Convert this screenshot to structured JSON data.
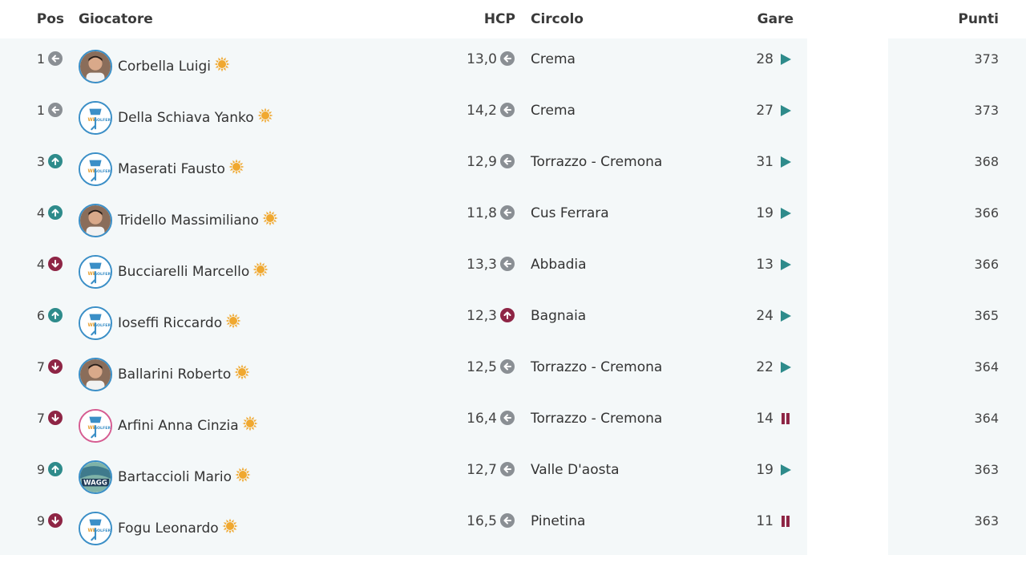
{
  "header": {
    "pos": "Pos",
    "player": "Giocatore",
    "hcp": "HCP",
    "club": "Circolo",
    "races": "Gare",
    "points": "Punti"
  },
  "colors": {
    "row_bg": "#f4f8f9",
    "gray_icon": "#8a8f94",
    "up_icon": "#2e8b8b",
    "down_icon": "#8e2545",
    "play": "#2e8b8b",
    "pause": "#8e2545",
    "sun": "#f0a830",
    "avatar_border": "#3b8fc7"
  },
  "rows": [
    {
      "pos": "1",
      "pos_trend": "left-arrow-icon",
      "avatar": "photo",
      "name": "Corbella Luigi",
      "hcp": "13,0",
      "hcp_trend": "left-arrow-icon",
      "club": "Crema",
      "races": "28",
      "race_status": "play-icon",
      "points": "373"
    },
    {
      "pos": "1",
      "pos_trend": "left-arrow-icon",
      "avatar": "logo",
      "name": "Della Schiava Yanko",
      "hcp": "14,2",
      "hcp_trend": "left-arrow-icon",
      "club": "Crema",
      "races": "27",
      "race_status": "play-icon",
      "points": "373"
    },
    {
      "pos": "3",
      "pos_trend": "up-arrow-icon",
      "avatar": "logo",
      "name": "Maserati Fausto",
      "hcp": "12,9",
      "hcp_trend": "left-arrow-icon",
      "club": "Torrazzo - Cremona",
      "races": "31",
      "race_status": "play-icon",
      "points": "368"
    },
    {
      "pos": "4",
      "pos_trend": "up-arrow-icon",
      "avatar": "photo",
      "name": "Tridello Massimiliano",
      "hcp": "11,8",
      "hcp_trend": "left-arrow-icon",
      "club": "Cus Ferrara",
      "races": "19",
      "race_status": "play-icon",
      "points": "366"
    },
    {
      "pos": "4",
      "pos_trend": "down-arrow-icon",
      "avatar": "logo",
      "name": "Bucciarelli Marcello",
      "hcp": "13,3",
      "hcp_trend": "left-arrow-icon",
      "club": "Abbadia",
      "races": "13",
      "race_status": "play-icon",
      "points": "366"
    },
    {
      "pos": "6",
      "pos_trend": "up-arrow-icon",
      "avatar": "logo",
      "name": "Ioseffi Riccardo",
      "hcp": "12,3",
      "hcp_trend": "up-arrow-red-icon",
      "club": "Bagnaia",
      "races": "24",
      "race_status": "play-icon",
      "points": "365"
    },
    {
      "pos": "7",
      "pos_trend": "down-arrow-icon",
      "avatar": "photo",
      "name": "Ballarini Roberto",
      "hcp": "12,5",
      "hcp_trend": "left-arrow-icon",
      "club": "Torrazzo - Cremona",
      "races": "22",
      "race_status": "play-icon",
      "points": "364"
    },
    {
      "pos": "7",
      "pos_trend": "down-arrow-icon",
      "avatar": "logo-pink",
      "name": "Arfini Anna Cinzia",
      "hcp": "16,4",
      "hcp_trend": "left-arrow-icon",
      "club": "Torrazzo - Cremona",
      "races": "14",
      "race_status": "pause-icon",
      "points": "364"
    },
    {
      "pos": "9",
      "pos_trend": "up-arrow-icon",
      "avatar": "logo-wagg",
      "name": "Bartaccioli Mario",
      "hcp": "12,7",
      "hcp_trend": "left-arrow-icon",
      "club": "Valle D'aosta",
      "races": "19",
      "race_status": "play-icon",
      "points": "363"
    },
    {
      "pos": "9",
      "pos_trend": "down-arrow-icon",
      "avatar": "logo",
      "name": "Fogu Leonardo",
      "hcp": "16,5",
      "hcp_trend": "left-arrow-icon",
      "club": "Pinetina",
      "races": "11",
      "race_status": "pause-icon",
      "points": "363"
    }
  ]
}
